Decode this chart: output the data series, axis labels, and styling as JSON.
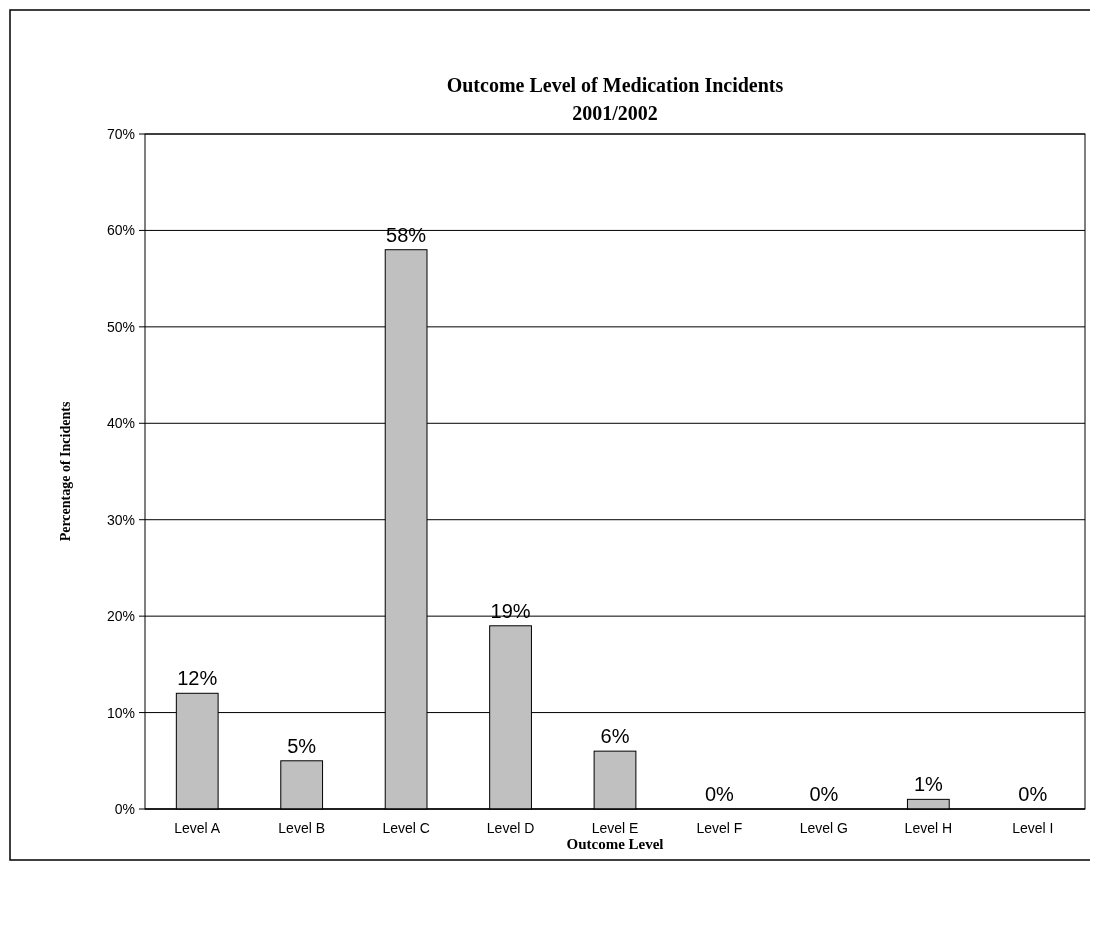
{
  "chart_data": {
    "type": "bar",
    "title": "Outcome Level of Medication Incidents\n2001/2002",
    "xlabel": "Outcome Level",
    "ylabel": "Percentage of Incidents",
    "categories": [
      "Level A",
      "Level B",
      "Level C",
      "Level D",
      "Level E",
      "Level F",
      "Level G",
      "Level H",
      "Level I"
    ],
    "values": [
      12,
      5,
      58,
      19,
      6,
      0,
      0,
      1,
      0
    ],
    "color": "#c0c0c0",
    "value_labels": [
      "12%",
      "5%",
      "58%",
      "19%",
      "6%",
      "0%",
      "0%",
      "1%",
      "0%"
    ],
    "ylim": [
      0,
      70
    ],
    "yticks": [
      {
        "value": 0,
        "label": "0%"
      },
      {
        "value": 10,
        "label": "10%"
      },
      {
        "value": 20,
        "label": "20%"
      },
      {
        "value": 30,
        "label": "30%"
      },
      {
        "value": 40,
        "label": "40%"
      },
      {
        "value": 50,
        "label": "50%"
      },
      {
        "value": 60,
        "label": "60%"
      },
      {
        "value": 70,
        "label": "70%"
      }
    ],
    "grid": true
  }
}
